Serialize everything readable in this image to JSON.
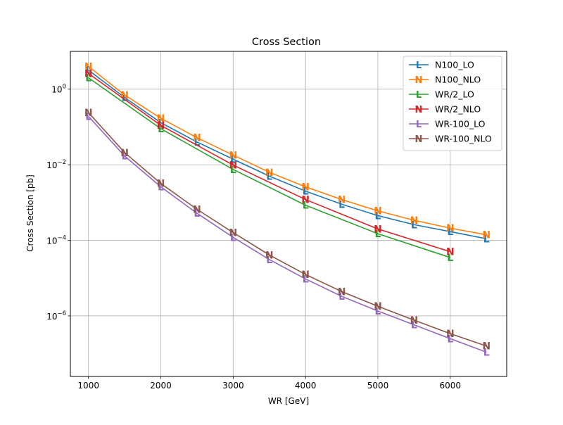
{
  "chart_data": {
    "type": "line",
    "title": "Cross Section",
    "xlabel": "WR [GeV]",
    "ylabel": "Cross Section [pb]",
    "xlim": [
      750,
      6780
    ],
    "ylim": [
      2.5e-08,
      10
    ],
    "yscale": "log",
    "grid": true,
    "legend_position": "top-right",
    "x_ticks": [
      1000,
      2000,
      3000,
      4000,
      5000,
      6000
    ],
    "x_tick_labels": [
      "1000",
      "2000",
      "3000",
      "4000",
      "5000",
      "6000"
    ],
    "y_ticks": [
      1e-06,
      0.0001,
      0.01,
      1
    ],
    "y_tick_base": "10",
    "y_tick_exponents": [
      "−6",
      "−4",
      "−2",
      "0"
    ],
    "series": [
      {
        "name": "N100_LO",
        "color": "#1f77b4",
        "marker": "L",
        "x": [
          1000,
          1500,
          2000,
          2500,
          3000,
          3500,
          4000,
          4500,
          5000,
          5500,
          6000,
          6500
        ],
        "y": [
          3.2,
          0.6,
          0.13,
          0.04,
          0.014,
          0.005,
          0.002,
          0.0009,
          0.00045,
          0.00026,
          0.00017,
          0.00011
        ]
      },
      {
        "name": "N100_NLO",
        "color": "#ff7f0e",
        "marker": "N",
        "x": [
          1000,
          1500,
          2000,
          2500,
          3000,
          3500,
          4000,
          4500,
          5000,
          5500,
          6000,
          6500
        ],
        "y": [
          4.0,
          0.7,
          0.17,
          0.052,
          0.018,
          0.0063,
          0.0026,
          0.0012,
          0.0006,
          0.00034,
          0.00021,
          0.00014
        ]
      },
      {
        "name": "WR/2_LO",
        "color": "#2ca02c",
        "marker": "L",
        "x": [
          1000,
          2000,
          3000,
          4000,
          5000,
          6000
        ],
        "y": [
          2.0,
          0.09,
          0.0075,
          0.00085,
          0.00015,
          3.5e-05
        ]
      },
      {
        "name": "WR/2_NLO",
        "color": "#d62728",
        "marker": "N",
        "x": [
          1000,
          2000,
          3000,
          4000,
          5000,
          6000
        ],
        "y": [
          2.6,
          0.11,
          0.0098,
          0.0012,
          0.0002,
          5e-05
        ]
      },
      {
        "name": "WR-100_LO",
        "color": "#9467bd",
        "marker": "L",
        "x": [
          1000,
          1500,
          2000,
          2500,
          3000,
          3500,
          4000,
          4500,
          5000,
          5500,
          6000,
          6500
        ],
        "y": [
          0.19,
          0.017,
          0.0026,
          0.00052,
          0.00012,
          3.1e-05,
          9.5e-06,
          3.3e-06,
          1.35e-06,
          5.8e-07,
          2.5e-07,
          1.1e-07
        ]
      },
      {
        "name": "WR-100_NLO",
        "color": "#8c564b",
        "marker": "N",
        "x": [
          1000,
          1500,
          2000,
          2500,
          3000,
          3500,
          4000,
          4500,
          5000,
          5500,
          6000,
          6500
        ],
        "y": [
          0.24,
          0.021,
          0.0032,
          0.00066,
          0.00016,
          4.1e-05,
          1.25e-05,
          4.4e-06,
          1.8e-06,
          7.7e-07,
          3.4e-07,
          1.6e-07
        ]
      }
    ]
  }
}
